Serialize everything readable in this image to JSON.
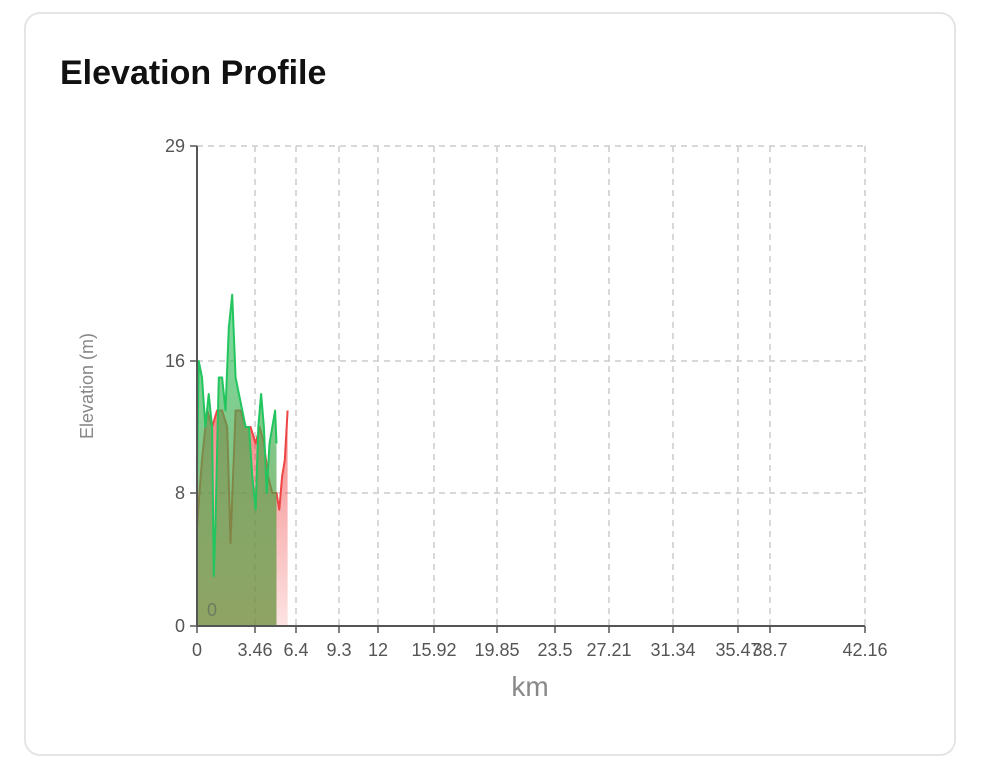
{
  "card": {
    "title": "Elevation Profile"
  },
  "chart_data": {
    "type": "area",
    "title": "Elevation Profile",
    "xlabel": "km",
    "ylabel": "Elevation (m)",
    "x_tick_labels": [
      "0",
      "3.46",
      "6.4",
      "9.3",
      "12",
      "15.92",
      "19.85",
      "23.5",
      "27.21",
      "31.34",
      "35.47",
      "38.7",
      "42.16"
    ],
    "y_tick_labels": [
      "0",
      "8",
      "16",
      "29"
    ],
    "ylim": [
      0,
      29
    ],
    "grid": true,
    "annotation": "0",
    "colors": {
      "green": "#22c55e",
      "red": "#ef4444"
    },
    "series": [
      {
        "color": "green",
        "points": [
          [
            0,
            9
          ],
          [
            0.1,
            16
          ],
          [
            0.3,
            15
          ],
          [
            0.5,
            12
          ],
          [
            0.7,
            14
          ],
          [
            0.9,
            12
          ],
          [
            1.0,
            3
          ],
          [
            1.1,
            6
          ],
          [
            1.3,
            15
          ],
          [
            1.5,
            15
          ],
          [
            1.7,
            13
          ],
          [
            1.9,
            18
          ],
          [
            2.1,
            20
          ],
          [
            2.3,
            15
          ],
          [
            2.5,
            14
          ],
          [
            2.7,
            13
          ],
          [
            2.9,
            12
          ],
          [
            3.1,
            12
          ],
          [
            3.3,
            9
          ],
          [
            3.5,
            7
          ],
          [
            3.7,
            12
          ],
          [
            3.9,
            14
          ],
          [
            4.1,
            12
          ],
          [
            4.3,
            8
          ],
          [
            4.5,
            11
          ],
          [
            4.7,
            12
          ],
          [
            4.9,
            13
          ],
          [
            5.0,
            11
          ]
        ]
      },
      {
        "color": "red",
        "points": [
          [
            0,
            6
          ],
          [
            0.3,
            10
          ],
          [
            0.6,
            13
          ],
          [
            0.9,
            12
          ],
          [
            1.2,
            13
          ],
          [
            1.5,
            13
          ],
          [
            1.8,
            12
          ],
          [
            2.0,
            5
          ],
          [
            2.3,
            13
          ],
          [
            2.6,
            13
          ],
          [
            2.9,
            12
          ],
          [
            3.2,
            12
          ],
          [
            3.5,
            11
          ],
          [
            3.8,
            12
          ],
          [
            4.1,
            11
          ],
          [
            4.4,
            9
          ],
          [
            4.7,
            8
          ],
          [
            5.0,
            8
          ],
          [
            5.2,
            7
          ],
          [
            5.4,
            9
          ],
          [
            5.6,
            10
          ],
          [
            5.8,
            13
          ]
        ]
      }
    ]
  }
}
